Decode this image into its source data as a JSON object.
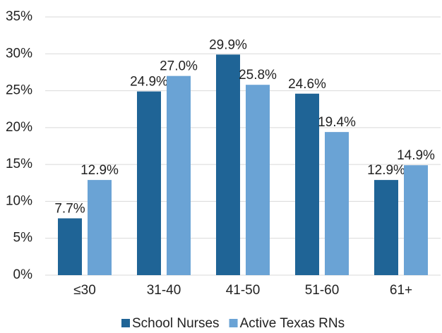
{
  "chart_data": {
    "type": "bar",
    "categories": [
      "≤30",
      "31-40",
      "41-50",
      "51-60",
      "61+"
    ],
    "series": [
      {
        "name": "School Nurses",
        "color": "#1f6496",
        "values": [
          7.7,
          24.9,
          29.9,
          24.6,
          12.9
        ],
        "value_labels": [
          "7.7%",
          "24.9%",
          "29.9%",
          "24.6%",
          "12.9%"
        ]
      },
      {
        "name": "Active Texas RNs",
        "color": "#6aa3d5",
        "values": [
          12.9,
          27.0,
          25.8,
          19.4,
          14.9
        ],
        "value_labels": [
          "12.9%",
          "27.0%",
          "25.8%",
          "19.4%",
          "14.9%"
        ]
      }
    ],
    "ylim": [
      0,
      35
    ],
    "yticks": [
      {
        "value": 0,
        "label": "0%"
      },
      {
        "value": 5,
        "label": "5%"
      },
      {
        "value": 10,
        "label": "10%"
      },
      {
        "value": 15,
        "label": "15%"
      },
      {
        "value": 20,
        "label": "20%"
      },
      {
        "value": 25,
        "label": "25%"
      },
      {
        "value": 30,
        "label": "30%"
      },
      {
        "value": 35,
        "label": "35%"
      }
    ],
    "grid": true,
    "legend": "bottom"
  }
}
